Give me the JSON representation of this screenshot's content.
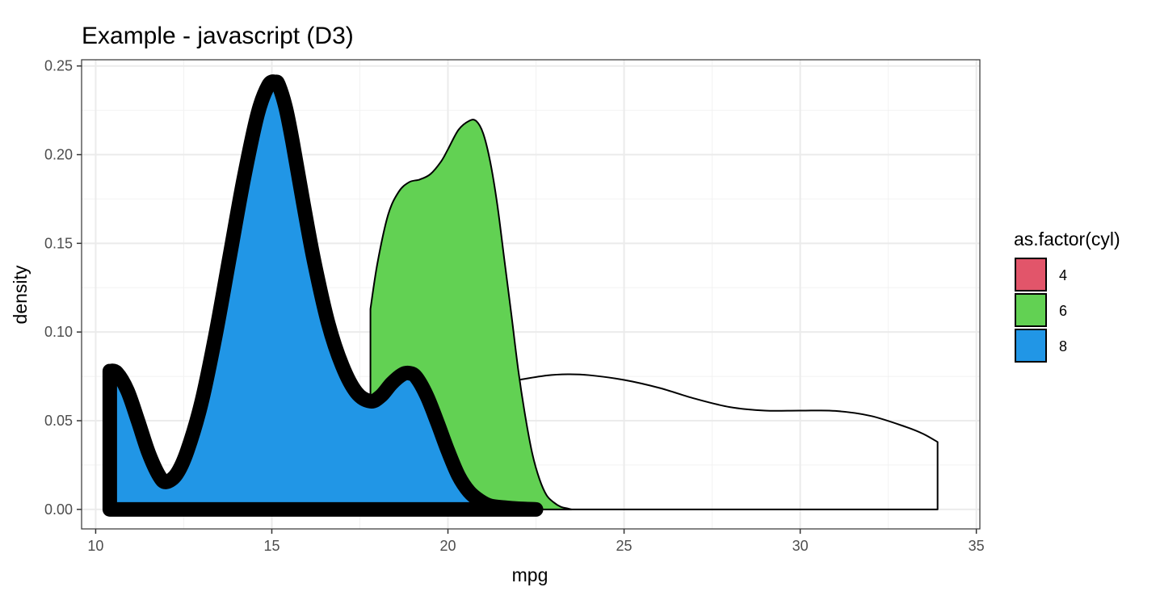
{
  "chart_data": {
    "type": "area",
    "title": "Example - javascript (D3)",
    "xlabel": "mpg",
    "ylabel": "density",
    "xlim": [
      9.6,
      35.1
    ],
    "ylim": [
      -0.011,
      0.2535
    ],
    "x_ticks": [
      10,
      15,
      20,
      25,
      30,
      35
    ],
    "x_tick_labels": [
      "10",
      "15",
      "20",
      "25",
      "30",
      "35"
    ],
    "y_ticks": [
      0,
      0.05,
      0.1,
      0.15,
      0.2,
      0.25
    ],
    "y_tick_labels": [
      "0.00",
      "0.05",
      "0.10",
      "0.15",
      "0.20",
      "0.25"
    ],
    "grid": true,
    "legend_title": "as.factor(cyl)",
    "legend_position": "right",
    "series": [
      {
        "name": "4",
        "fill": "none",
        "legend_color": "#e2556a",
        "stroke": "#000000",
        "stroke_width": 2,
        "x": [
          21.4,
          22.0,
          22.8,
          23.4,
          24.0,
          25.0,
          26.0,
          27.0,
          28.0,
          29.0,
          30.0,
          31.0,
          32.0,
          33.0,
          33.5,
          33.9
        ],
        "y": [
          0.071,
          0.073,
          0.0755,
          0.0762,
          0.0757,
          0.073,
          0.0685,
          0.0625,
          0.0577,
          0.0557,
          0.0557,
          0.0555,
          0.0527,
          0.0465,
          0.0425,
          0.038
        ]
      },
      {
        "name": "6",
        "fill": "#62d153",
        "stroke": "#000000",
        "stroke_width": 2,
        "x": [
          17.8,
          18.0,
          18.3,
          18.6,
          18.9,
          19.2,
          19.5,
          19.8,
          20.0,
          20.3,
          20.6,
          20.8,
          21.0,
          21.2,
          21.4,
          21.6,
          21.8,
          22.0,
          22.2,
          22.4,
          22.6,
          22.8,
          23.0,
          23.2,
          23.4,
          23.5
        ],
        "y": [
          0.113,
          0.139,
          0.166,
          0.179,
          0.1845,
          0.186,
          0.189,
          0.196,
          0.203,
          0.214,
          0.219,
          0.219,
          0.212,
          0.196,
          0.172,
          0.141,
          0.11,
          0.078,
          0.052,
          0.031,
          0.017,
          0.008,
          0.004,
          0.0015,
          0.0005,
          0.0
        ]
      },
      {
        "name": "8",
        "fill": "#2196e6",
        "stroke": "#000000",
        "stroke_width": 18,
        "x": [
          10.4,
          10.6,
          10.9,
          11.2,
          11.5,
          11.8,
          12.0,
          12.3,
          12.6,
          13.0,
          13.4,
          13.8,
          14.2,
          14.6,
          14.9,
          15.1,
          15.2,
          15.4,
          15.6,
          15.9,
          16.2,
          16.6,
          17.0,
          17.4,
          17.8,
          18.1,
          18.4,
          18.7,
          18.9,
          19.1,
          19.4,
          19.7,
          20.0,
          20.3,
          20.6,
          20.9,
          21.2,
          21.6,
          22.0,
          22.5
        ],
        "y": [
          0.078,
          0.077,
          0.067,
          0.05,
          0.032,
          0.019,
          0.0155,
          0.02,
          0.033,
          0.06,
          0.098,
          0.142,
          0.186,
          0.223,
          0.239,
          0.241,
          0.239,
          0.226,
          0.206,
          0.172,
          0.14,
          0.105,
          0.081,
          0.066,
          0.061,
          0.064,
          0.071,
          0.076,
          0.0768,
          0.0745,
          0.064,
          0.049,
          0.033,
          0.019,
          0.01,
          0.005,
          0.002,
          0.001,
          0.0004,
          0.0
        ]
      }
    ]
  }
}
